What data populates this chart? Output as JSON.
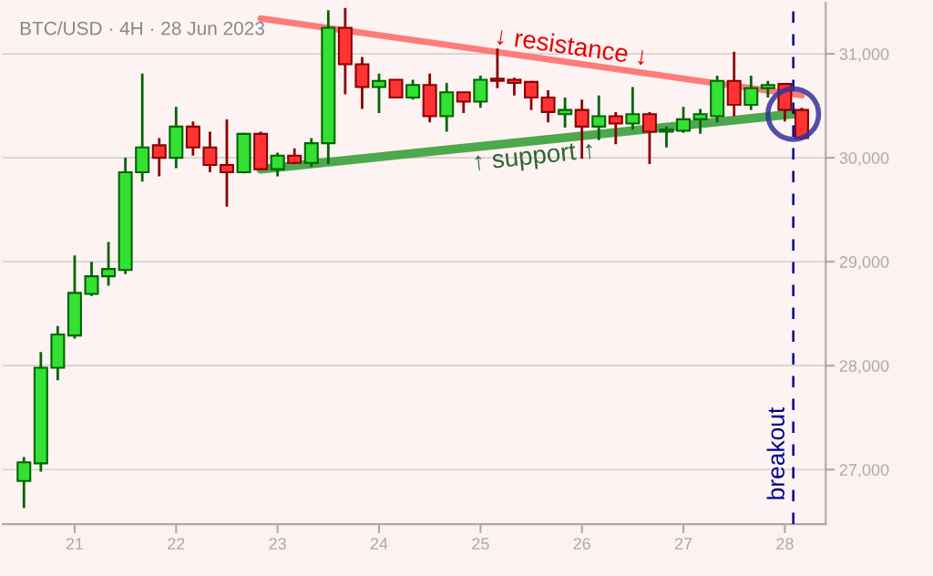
{
  "chart_data": {
    "type": "candlestick",
    "title": "BTC/USD · 4H · 28 Jun 2023",
    "x": [
      "2023-06-20T12:00",
      "2023-06-20T16:00",
      "2023-06-20T20:00",
      "2023-06-21T00:00",
      "2023-06-21T04:00",
      "2023-06-21T08:00",
      "2023-06-21T12:00",
      "2023-06-21T16:00",
      "2023-06-21T20:00",
      "2023-06-22T00:00",
      "2023-06-22T04:00",
      "2023-06-22T08:00",
      "2023-06-22T12:00",
      "2023-06-22T16:00",
      "2023-06-22T20:00",
      "2023-06-23T00:00",
      "2023-06-23T04:00",
      "2023-06-23T08:00",
      "2023-06-23T12:00",
      "2023-06-23T16:00",
      "2023-06-23T20:00",
      "2023-06-24T00:00",
      "2023-06-24T04:00",
      "2023-06-24T08:00",
      "2023-06-24T12:00",
      "2023-06-24T16:00",
      "2023-06-24T20:00",
      "2023-06-25T00:00",
      "2023-06-25T04:00",
      "2023-06-25T08:00",
      "2023-06-25T12:00",
      "2023-06-25T16:00",
      "2023-06-25T20:00",
      "2023-06-26T00:00",
      "2023-06-26T04:00",
      "2023-06-26T08:00",
      "2023-06-26T12:00",
      "2023-06-26T16:00",
      "2023-06-26T20:00",
      "2023-06-27T00:00",
      "2023-06-27T04:00",
      "2023-06-27T08:00",
      "2023-06-27T12:00",
      "2023-06-27T16:00",
      "2023-06-27T20:00",
      "2023-06-28T00:00",
      "2023-06-28T04:00"
    ],
    "ohlc": [
      [
        26890,
        27120,
        26630,
        27070
      ],
      [
        27060,
        28130,
        26980,
        27980
      ],
      [
        27980,
        28380,
        27860,
        28300
      ],
      [
        28290,
        29060,
        28260,
        28700
      ],
      [
        28690,
        29000,
        28670,
        28860
      ],
      [
        28860,
        29190,
        28770,
        28930
      ],
      [
        28920,
        30000,
        28880,
        29860
      ],
      [
        29860,
        30810,
        29770,
        30100
      ],
      [
        30120,
        30190,
        29820,
        30000
      ],
      [
        30000,
        30490,
        29900,
        30300
      ],
      [
        30300,
        30350,
        30020,
        30100
      ],
      [
        30100,
        30250,
        29860,
        29930
      ],
      [
        29930,
        30370,
        29530,
        29860
      ],
      [
        29860,
        30240,
        29850,
        30230
      ],
      [
        30230,
        30250,
        29890,
        29890
      ],
      [
        29890,
        30050,
        29820,
        30020
      ],
      [
        30020,
        30090,
        29940,
        29950
      ],
      [
        29950,
        30190,
        29910,
        30140
      ],
      [
        30140,
        31420,
        29940,
        31250
      ],
      [
        31250,
        31440,
        30610,
        30900
      ],
      [
        30900,
        30970,
        30470,
        30680
      ],
      [
        30680,
        30810,
        30430,
        30740
      ],
      [
        30750,
        30750,
        30570,
        30580
      ],
      [
        30580,
        30750,
        30560,
        30700
      ],
      [
        30700,
        30810,
        30340,
        30400
      ],
      [
        30400,
        30720,
        30250,
        30630
      ],
      [
        30630,
        30630,
        30430,
        30540
      ],
      [
        30540,
        30790,
        30480,
        30750
      ],
      [
        30760,
        31050,
        30670,
        30740
      ],
      [
        30750,
        30770,
        30600,
        30720
      ],
      [
        30730,
        30740,
        30460,
        30580
      ],
      [
        30580,
        30650,
        30340,
        30440
      ],
      [
        30420,
        30580,
        30290,
        30460
      ],
      [
        30460,
        30560,
        29990,
        30300
      ],
      [
        30300,
        30600,
        30170,
        30400
      ],
      [
        30400,
        30440,
        30130,
        30330
      ],
      [
        30330,
        30680,
        30270,
        30420
      ],
      [
        30420,
        30440,
        29940,
        30250
      ],
      [
        30250,
        30300,
        30100,
        30270
      ],
      [
        30260,
        30490,
        30240,
        30370
      ],
      [
        30370,
        30470,
        30230,
        30420
      ],
      [
        30400,
        30790,
        30340,
        30740
      ],
      [
        30740,
        31020,
        30400,
        30510
      ],
      [
        30510,
        30790,
        30460,
        30670
      ],
      [
        30670,
        30740,
        30580,
        30700
      ],
      [
        30710,
        30720,
        30350,
        30460
      ],
      [
        30460,
        30480,
        30170,
        30190
      ]
    ],
    "series": [
      {
        "type": "line",
        "color": "#ff7b7b",
        "x": [
          "2023-06-22T20:00",
          "2023-06-28T04:00"
        ],
        "values": [
          31340,
          30600
        ]
      },
      {
        "type": "line",
        "color": "#4ea84e",
        "x": [
          "2023-06-22T20:00",
          "2023-06-28T02:00"
        ],
        "values": [
          29890,
          30420
        ]
      }
    ],
    "annotations": [
      "↓ resistance ↓",
      "↑ support ↑"
    ],
    "ref_lines": [
      {
        "axis": "x",
        "value": "2023-06-28T02:00",
        "label": "breakout",
        "color": "#00008b",
        "line_style": "dashed"
      }
    ],
    "xlim": [
      "2023-06-20T07:00",
      "2023-06-28T09:40"
    ],
    "xticks": [
      {
        "value": "2023-06-21",
        "label": "21"
      },
      {
        "value": "2023-06-22",
        "label": "22"
      },
      {
        "value": "2023-06-23",
        "label": "23"
      },
      {
        "value": "2023-06-24",
        "label": "24"
      },
      {
        "value": "2023-06-25",
        "label": "25"
      },
      {
        "value": "2023-06-26",
        "label": "26"
      },
      {
        "value": "2023-06-27",
        "label": "27"
      },
      {
        "value": "2023-06-28",
        "label": "28"
      }
    ],
    "ylim": [
      26475,
      31490
    ],
    "yticks": [
      {
        "value": 27000,
        "label": "27,000"
      },
      {
        "value": 28000,
        "label": "28,000"
      },
      {
        "value": 29000,
        "label": "29,000"
      },
      {
        "value": 30000,
        "label": "30,000"
      },
      {
        "value": 31000,
        "label": "31,000"
      }
    ],
    "grid": "y"
  }
}
